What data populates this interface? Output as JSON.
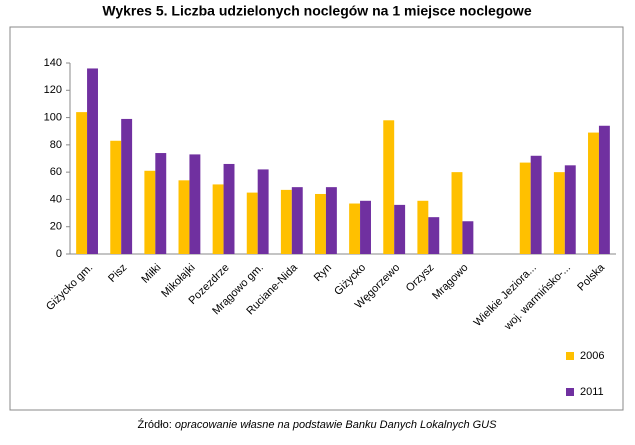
{
  "chart_data": {
    "type": "bar",
    "title": "Wykres 5. Liczba udzielonych noclegów na 1 miejsce noclegowe",
    "categories": [
      "Giżycko gm.",
      "Pisz",
      "Miłki",
      "Mikołajki",
      "Pozezdrze",
      "Mrągowo gm.",
      "Ruciane-Nida",
      "Ryn",
      "Giżycko",
      "Węgorzewo",
      "Orzysz",
      "Mrągowo",
      null,
      "Wielkie Jeziora...",
      "woj. warmińsko-...",
      "Polska"
    ],
    "series": [
      {
        "name": "2006",
        "color": "#ffc000",
        "values": [
          104,
          83,
          61,
          54,
          51,
          45,
          47,
          44,
          37,
          98,
          39,
          60,
          null,
          67,
          60,
          89
        ]
      },
      {
        "name": "2011",
        "color": "#7030a0",
        "values": [
          136,
          99,
          74,
          73,
          66,
          62,
          49,
          49,
          39,
          36,
          27,
          24,
          null,
          72,
          65,
          94
        ]
      }
    ],
    "ylim": [
      0,
      140
    ],
    "yticks": [
      0,
      20,
      40,
      60,
      80,
      100,
      120,
      140
    ],
    "source_label": "Źródło:",
    "source": "opracowanie własne na podstawie Banku Danych Lokalnych GUS"
  }
}
